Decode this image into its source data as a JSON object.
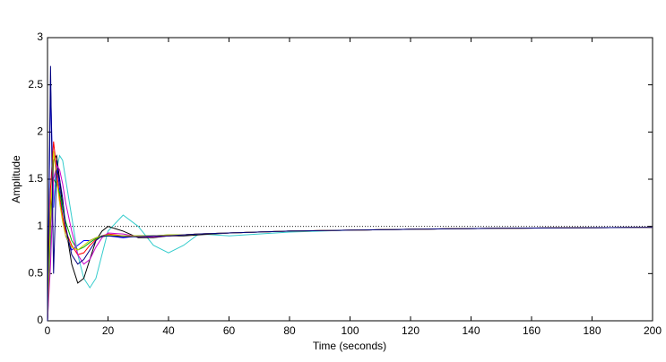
{
  "chart_data": {
    "type": "line",
    "xlabel": "Time (seconds)",
    "ylabel": "Amplitude",
    "x": [
      0,
      1,
      2,
      3,
      4,
      5,
      6,
      8,
      10,
      12,
      14,
      16,
      18,
      20,
      25,
      30,
      35,
      40,
      45,
      50,
      60,
      80,
      100,
      120,
      150,
      200
    ],
    "series": [
      {
        "color": "#0000ff",
        "values": [
          0,
          2.5,
          1.2,
          1.7,
          1.4,
          1.1,
          0.9,
          0.75,
          0.8,
          0.85,
          0.85,
          0.88,
          0.9,
          0.9,
          0.88,
          0.9,
          0.9,
          0.9,
          0.91,
          0.92,
          0.93,
          0.95,
          0.96,
          0.97,
          0.98,
          0.99
        ]
      },
      {
        "color": "#33cccc",
        "values": [
          0,
          0.8,
          1.3,
          1.6,
          1.75,
          1.7,
          1.5,
          1.1,
          0.7,
          0.45,
          0.35,
          0.45,
          0.7,
          0.95,
          1.12,
          1.0,
          0.8,
          0.72,
          0.8,
          0.92,
          0.9,
          0.94,
          0.96,
          0.97,
          0.98,
          0.99
        ]
      },
      {
        "color": "#000000",
        "values": [
          0,
          1.0,
          1.7,
          1.75,
          1.5,
          1.2,
          1.0,
          0.6,
          0.4,
          0.45,
          0.65,
          0.85,
          0.95,
          1.0,
          0.95,
          0.88,
          0.88,
          0.9,
          0.9,
          0.91,
          0.93,
          0.95,
          0.96,
          0.97,
          0.98,
          0.99
        ]
      },
      {
        "color": "#ff0000",
        "values": [
          0,
          1.4,
          1.9,
          1.6,
          1.3,
          1.1,
          0.95,
          0.8,
          0.7,
          0.72,
          0.8,
          0.86,
          0.9,
          0.92,
          0.9,
          0.89,
          0.9,
          0.9,
          0.91,
          0.92,
          0.93,
          0.95,
          0.96,
          0.97,
          0.98,
          0.99
        ]
      },
      {
        "color": "#00aa00",
        "values": [
          0,
          1.2,
          1.5,
          1.45,
          1.35,
          1.2,
          1.05,
          0.85,
          0.75,
          0.78,
          0.83,
          0.87,
          0.89,
          0.9,
          0.9,
          0.9,
          0.9,
          0.91,
          0.91,
          0.92,
          0.93,
          0.95,
          0.96,
          0.97,
          0.98,
          0.99
        ]
      },
      {
        "color": "#cc00cc",
        "values": [
          0,
          0.6,
          1.5,
          1.65,
          1.6,
          1.45,
          1.25,
          0.95,
          0.7,
          0.6,
          0.65,
          0.78,
          0.88,
          0.93,
          0.92,
          0.89,
          0.89,
          0.9,
          0.91,
          0.92,
          0.93,
          0.95,
          0.96,
          0.97,
          0.98,
          0.99
        ]
      },
      {
        "color": "#cccc00",
        "values": [
          0,
          1.1,
          1.8,
          1.5,
          1.25,
          1.05,
          0.9,
          0.78,
          0.75,
          0.8,
          0.85,
          0.88,
          0.9,
          0.91,
          0.9,
          0.9,
          0.9,
          0.91,
          0.91,
          0.92,
          0.93,
          0.95,
          0.96,
          0.97,
          0.98,
          0.99
        ]
      },
      {
        "color": "#000080",
        "values": [
          0,
          2.7,
          0.5,
          1.6,
          1.5,
          1.3,
          1.0,
          0.7,
          0.6,
          0.65,
          0.75,
          0.85,
          0.9,
          0.9,
          0.89,
          0.89,
          0.9,
          0.9,
          0.91,
          0.92,
          0.93,
          0.95,
          0.96,
          0.97,
          0.98,
          0.99
        ]
      }
    ],
    "reference": 1,
    "xlim": [
      0,
      200
    ],
    "xticks": [
      0,
      20,
      40,
      60,
      80,
      100,
      120,
      140,
      160,
      180,
      200
    ],
    "ylim": [
      0,
      3
    ],
    "yticks": [
      0,
      0.5,
      1,
      1.5,
      2,
      2.5,
      3
    ],
    "grid": false
  }
}
